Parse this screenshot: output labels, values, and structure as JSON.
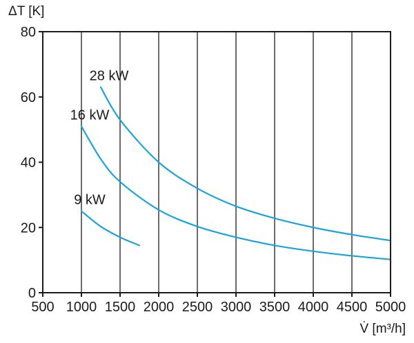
{
  "chart_data": {
    "type": "line",
    "xlabel": "V̇ [m³/h]",
    "ylabel": "ΔT [K]",
    "xlim": [
      500,
      5000
    ],
    "ylim": [
      0,
      80
    ],
    "xticks": [
      500,
      1000,
      1500,
      2000,
      2500,
      3000,
      3500,
      4000,
      4500,
      5000
    ],
    "yticks": [
      0,
      20,
      40,
      60,
      80
    ],
    "grid": "vertical",
    "line_color": "#1aa3dc",
    "series": [
      {
        "name": "28 kW",
        "x": [
          1250,
          1500,
          2000,
          2500,
          3000,
          3500,
          4000,
          4500,
          5000
        ],
        "y": [
          63,
          53,
          40,
          32,
          26.5,
          22.8,
          20,
          17.8,
          16
        ]
      },
      {
        "name": "16 kW",
        "x": [
          1000,
          1250,
          1500,
          2000,
          2500,
          3000,
          3500,
          4000,
          4500,
          5000
        ],
        "y": [
          51,
          41,
          34,
          25.4,
          20.3,
          17,
          14.5,
          12.7,
          11.3,
          10.2
        ]
      },
      {
        "name": "9 kW",
        "x": [
          1000,
          1250,
          1500,
          1750
        ],
        "y": [
          25,
          20.3,
          17,
          14.5
        ]
      }
    ]
  }
}
